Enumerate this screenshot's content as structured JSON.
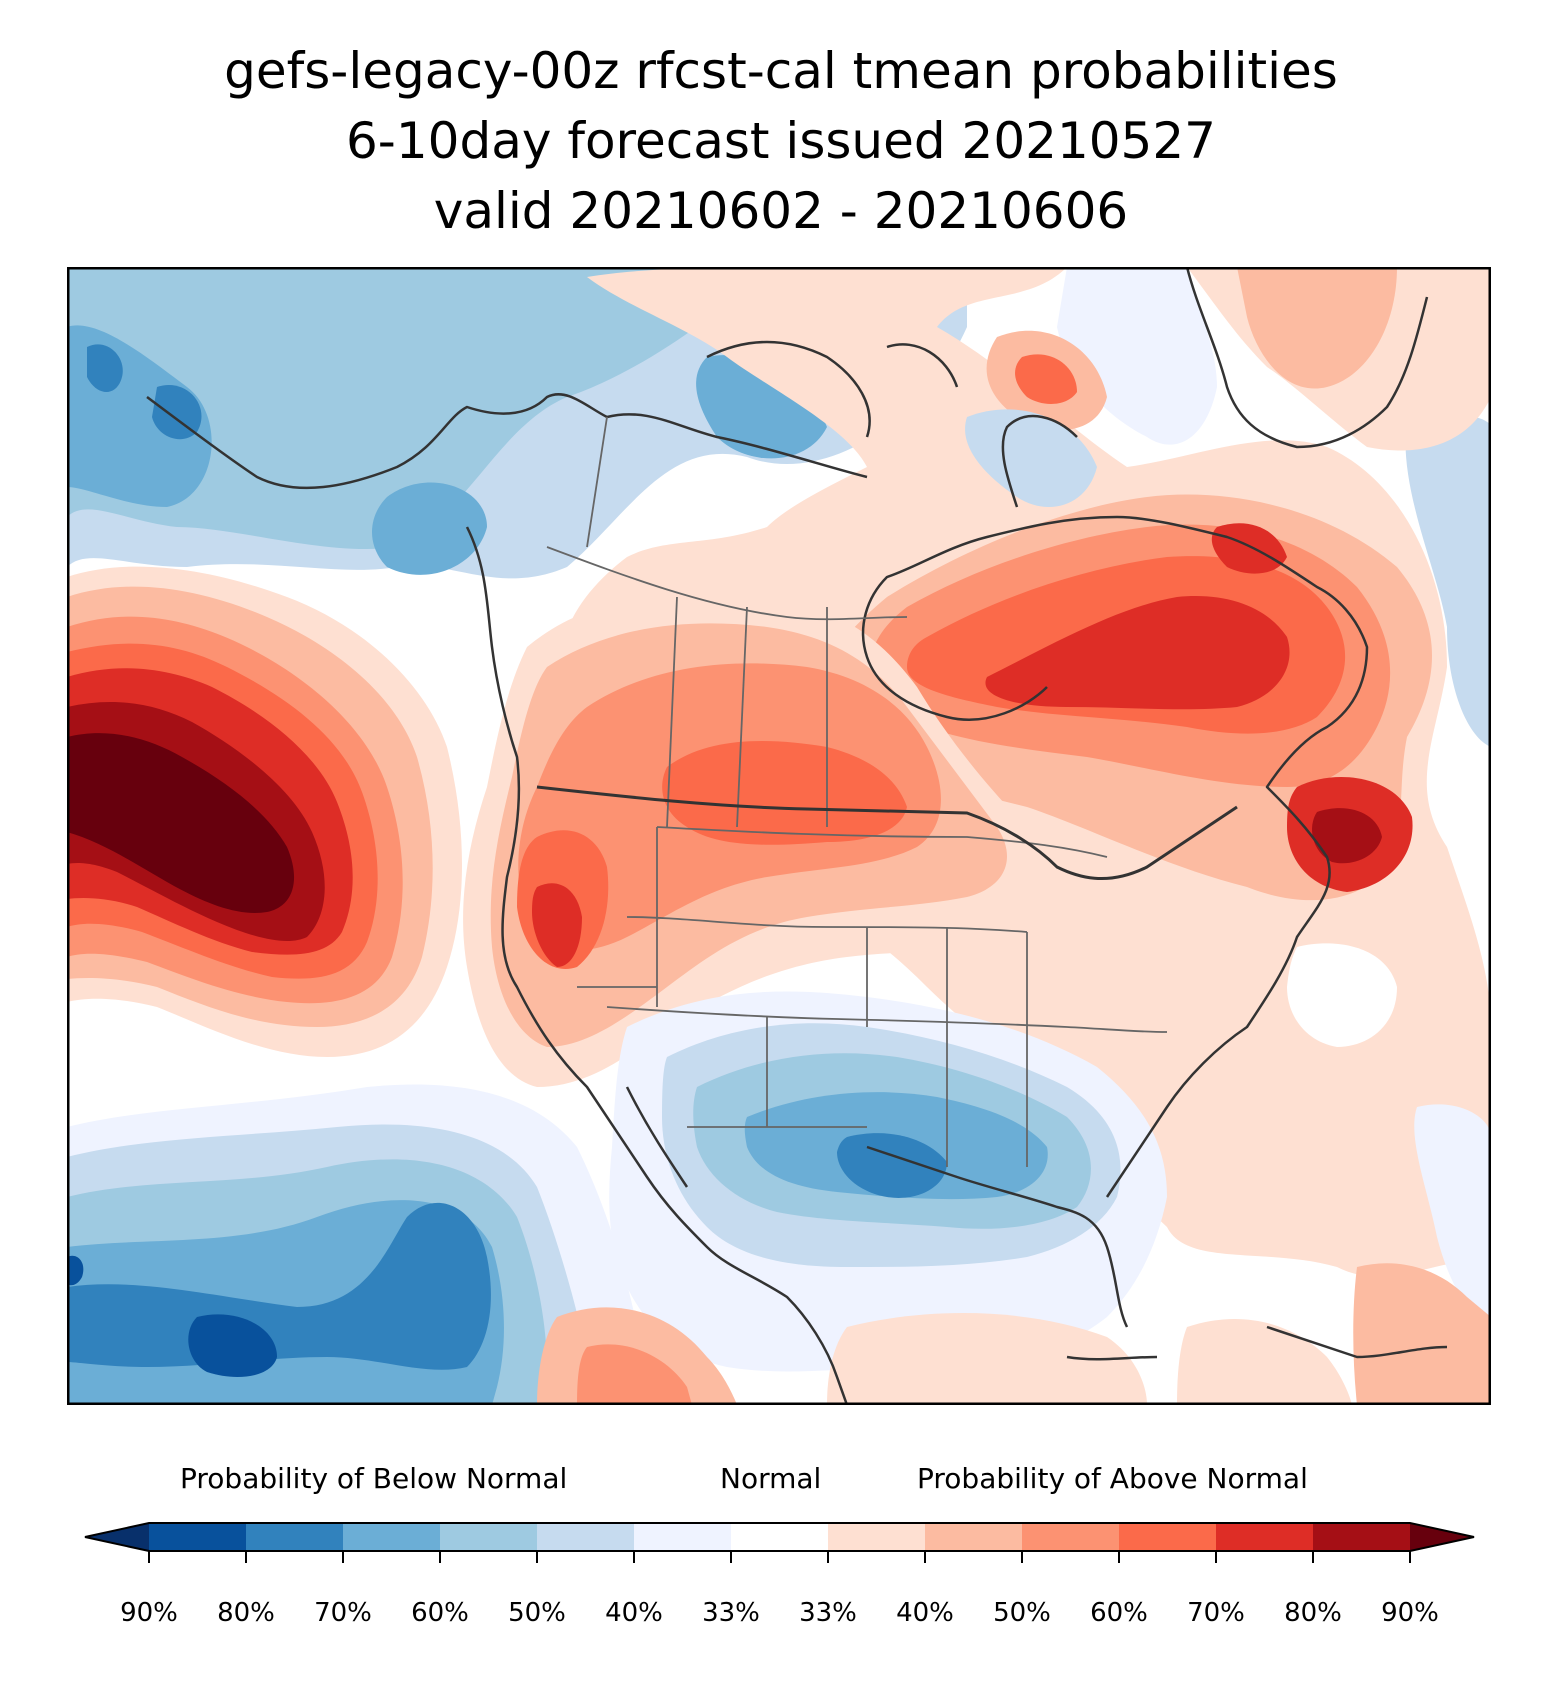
{
  "title": {
    "line1": "gefs-legacy-00z rfcst-cal tmean probabilities",
    "line2": "6-10day forecast issued 20210527",
    "line3": "valid 20210602 - 20210606"
  },
  "colorbar": {
    "below_label": "Probability of Below Normal",
    "normal_label": "Normal",
    "above_label": "Probability of Above Normal",
    "ticks": [
      "90%",
      "80%",
      "70%",
      "60%",
      "50%",
      "40%",
      "33%",
      "33%",
      "40%",
      "50%",
      "60%",
      "70%",
      "80%",
      "90%"
    ],
    "under_color": "#08306b",
    "over_color": "#67000d",
    "colors": [
      "#08519c",
      "#3182bd",
      "#6baed6",
      "#9ecae1",
      "#c6dbef",
      "#eff3ff",
      "#ffffff",
      "#fee0d2",
      "#fcbba1",
      "#fc9272",
      "#fb6a4a",
      "#de2d26",
      "#a50f15"
    ]
  },
  "map": {
    "region": "North America",
    "color_background": "#ffffff",
    "outline_color": "#333333",
    "border_color": "#666666"
  }
}
